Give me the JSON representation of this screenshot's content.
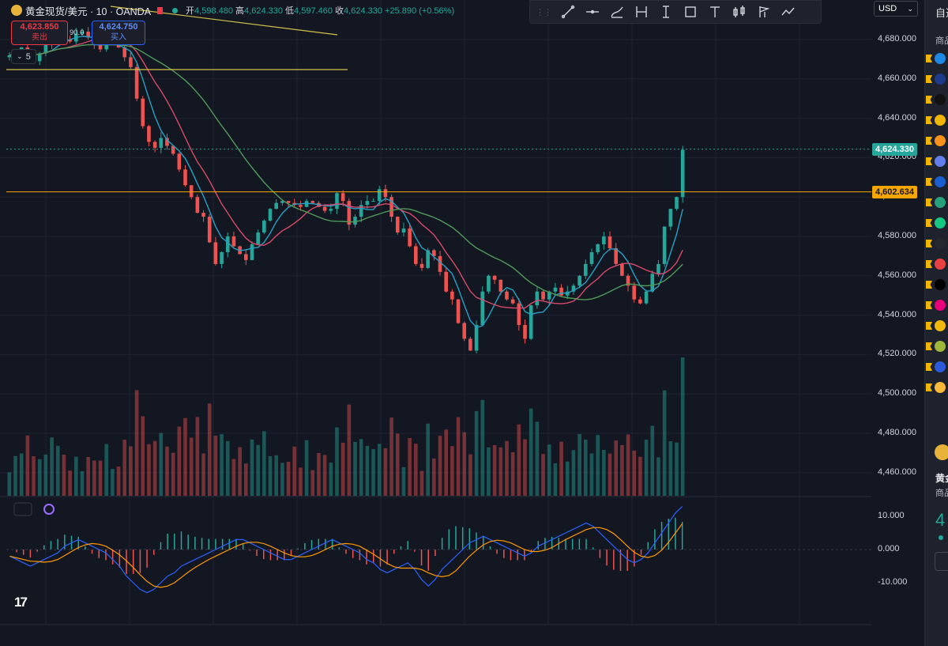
{
  "header": {
    "symbol_title": "黄金现货/美元 · 10 · OANDA",
    "ohlc": {
      "open_label": "开",
      "open": "4,598.480",
      "high_label": "高",
      "high": "4,624.330",
      "low_label": "低",
      "low": "4,597.460",
      "close_label": "收",
      "close": "4,624.330",
      "change": "+25.890 (+0.56%)"
    }
  },
  "trade": {
    "sell_price": "4,623.850",
    "sell_label": "卖出",
    "spread": "90.0",
    "buy_price": "4,624.750",
    "buy_label": "买入"
  },
  "indicator_toggle": "5",
  "currency": "USD",
  "price_axis": {
    "ticks": [
      "4,680.000",
      "4,660.000",
      "4,640.000",
      "4,620.000",
      "4,600.000",
      "4,580.000",
      "4,560.000",
      "4,540.000",
      "4,520.000",
      "4,500.000",
      "4,480.000",
      "4,460.000"
    ],
    "current_price": "4,624.330",
    "horizontal_line_price": "4,602.634"
  },
  "macd_axis": {
    "ticks": [
      "10.000",
      "0.000",
      "-10.000"
    ]
  },
  "toolbar": {
    "icons": [
      "drag-handle",
      "trend-line",
      "horizontal-line",
      "curve-brush",
      "price-range",
      "vertical-line",
      "rectangle",
      "text",
      "candles",
      "flag-pattern",
      "forecast-path"
    ]
  },
  "right_panel": {
    "top_label": "自选",
    "header_label": "商品",
    "symbol_label": "黄金",
    "category_label": "商品",
    "price_partial": "4",
    "watchlist_colors": [
      "#1e88e5",
      "#1e3a8a",
      "#111111",
      "#f2b600",
      "#f7931a",
      "#627eea",
      "#1a5fd0",
      "#26a17b",
      "#16c784",
      "#23292f",
      "#e84142",
      "#000000",
      "#e6007a",
      "#f0b90b",
      "#a0b63b",
      "#2a5ada",
      "#f6b93b"
    ]
  },
  "chart_data": {
    "type": "candlestick",
    "symbol": "黄金现货/美元",
    "interval": "10",
    "ylim": [
      4450,
      4690
    ],
    "grid": true,
    "close_series": [
      4672,
      4674,
      4676,
      4671,
      4669,
      4673,
      4678,
      4681,
      4682,
      4680,
      4679,
      4683,
      4684,
      4681,
      4678,
      4675,
      4678,
      4679,
      4676,
      4671,
      4666,
      4650,
      4636,
      4628,
      4625,
      4630,
      4626,
      4622,
      4614,
      4606,
      4600,
      4592,
      4590,
      4577,
      4566,
      4572,
      4580,
      4575,
      4571,
      4568,
      4576,
      4582,
      4588,
      4594,
      4597,
      4598,
      4597,
      4596,
      4595,
      4598,
      4597,
      4595,
      4593,
      4594,
      4602,
      4598,
      4586,
      4590,
      4596,
      4598,
      4598,
      4604,
      4600,
      4590,
      4582,
      4584,
      4575,
      4566,
      4564,
      4573,
      4570,
      4562,
      4552,
      4548,
      4536,
      4528,
      4522,
      4535,
      4552,
      4560,
      4558,
      4552,
      4548,
      4546,
      4535,
      4528,
      4545,
      4552,
      4548,
      4552,
      4554,
      4550,
      4552,
      4555,
      4560,
      4566,
      4572,
      4576,
      4580,
      4574,
      4566,
      4560,
      4555,
      4548,
      4546,
      4552,
      4561,
      4566,
      4585,
      4594,
      4600,
      4624
    ],
    "macd_series": [
      -2,
      -3,
      -4,
      -5,
      -4,
      -3,
      -2,
      -1,
      1,
      2,
      3,
      2,
      1,
      0,
      -1,
      -3,
      -5,
      -8,
      -10,
      -12,
      -13,
      -12,
      -10,
      -8,
      -7,
      -5,
      -4,
      -3,
      -2,
      -1,
      0,
      1,
      2,
      3,
      3,
      2,
      1,
      0,
      -1,
      -2,
      -3,
      -3,
      -2,
      -1,
      0,
      1,
      2,
      3,
      2,
      1,
      0,
      -1,
      -3,
      -4,
      -6,
      -7,
      -6,
      -5,
      -4,
      -6,
      -9,
      -11,
      -9,
      -6,
      -4,
      -2,
      0,
      2,
      3,
      4,
      3,
      2,
      1,
      0,
      -1,
      -2,
      -1,
      1,
      2,
      3,
      4,
      5,
      6,
      7,
      8,
      7,
      5,
      3,
      1,
      -1,
      -3,
      -4,
      -3,
      -1,
      2,
      5,
      8,
      11,
      13
    ]
  }
}
